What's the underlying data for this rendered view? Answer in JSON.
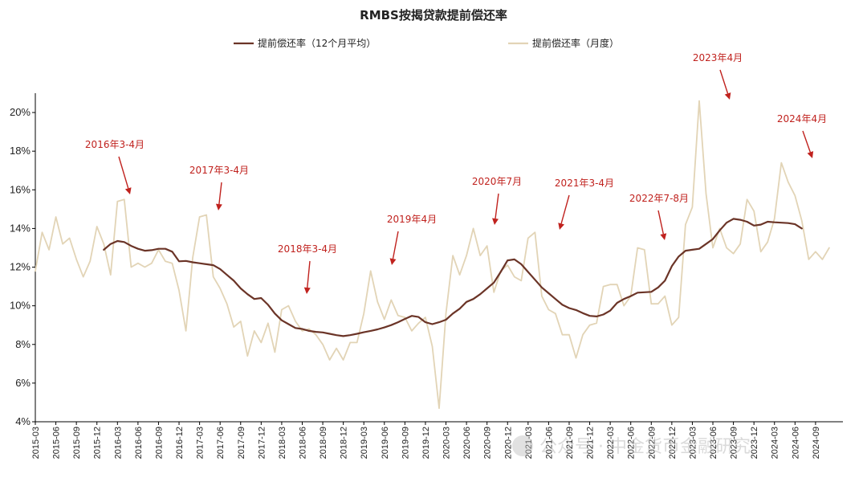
{
  "colors": {
    "avg_line": "#6b3427",
    "monthly_line": "#e2d4b6",
    "annotation": "#c0221e",
    "axis": "#000000"
  },
  "watermark": "公众号 · 中金货币金融研究",
  "chart_data": {
    "type": "line",
    "title": "RMBS按揭贷款提前偿还率",
    "xlabel": "",
    "ylabel": "",
    "ylim": [
      0.04,
      0.21
    ],
    "yticks": [
      "4%",
      "6%",
      "8%",
      "10%",
      "12%",
      "14%",
      "16%",
      "18%",
      "20%"
    ],
    "legend_position": "top-center",
    "grid": false,
    "x_tick_labels": [
      "2015-03",
      "2015-06",
      "2015-09",
      "2015-12",
      "2016-03",
      "2016-06",
      "2016-09",
      "2016-12",
      "2017-03",
      "2017-06",
      "2017-09",
      "2017-12",
      "2018-03",
      "2018-06",
      "2018-09",
      "2018-12",
      "2019-03",
      "2019-06",
      "2019-09",
      "2019-12",
      "2020-03",
      "2020-06",
      "2020-09",
      "2020-12",
      "2021-03",
      "2021-06",
      "2021-09",
      "2021-12",
      "2022-03",
      "2022-06",
      "2022-09",
      "2022-12",
      "2023-03",
      "2023-06",
      "2023-09",
      "2023-12",
      "2024-03",
      "2024-06",
      "2024-09"
    ],
    "series": [
      {
        "name": "提前偿还率（12个月平均）",
        "start": "2016-01",
        "values": [
          0.129,
          0.132,
          0.1335,
          0.133,
          0.131,
          0.1295,
          0.1285,
          0.1288,
          0.1295,
          0.1295,
          0.128,
          0.123,
          0.1232,
          0.1225,
          0.122,
          0.1215,
          0.121,
          0.119,
          0.116,
          0.113,
          0.109,
          0.106,
          0.1035,
          0.104,
          0.1005,
          0.096,
          0.0925,
          0.0905,
          0.0885,
          0.088,
          0.087,
          0.0865,
          0.0862,
          0.0855,
          0.0848,
          0.0843,
          0.0848,
          0.0855,
          0.0863,
          0.087,
          0.0878,
          0.0888,
          0.09,
          0.0915,
          0.0932,
          0.0948,
          0.0942,
          0.0915,
          0.0905,
          0.0915,
          0.0928,
          0.096,
          0.0985,
          0.102,
          0.1035,
          0.106,
          0.109,
          0.112,
          0.1175,
          0.1235,
          0.124,
          0.1215,
          0.1175,
          0.1135,
          0.1095,
          0.1065,
          0.1035,
          0.1005,
          0.0988,
          0.0978,
          0.0962,
          0.0948,
          0.0945,
          0.0955,
          0.0975,
          0.1015,
          0.1035,
          0.105,
          0.1068,
          0.107,
          0.1072,
          0.1095,
          0.113,
          0.1205,
          0.1255,
          0.1285,
          0.129,
          0.1295,
          0.132,
          0.1345,
          0.139,
          0.143,
          0.145,
          0.1445,
          0.1435,
          0.1415,
          0.142,
          0.1435,
          0.1432,
          0.143,
          0.1428,
          0.1422,
          0.14
        ]
      },
      {
        "name": "提前偿还率（月度）",
        "start": "2015-03",
        "values": [
          0.118,
          0.138,
          0.129,
          0.146,
          0.132,
          0.135,
          0.124,
          0.115,
          0.123,
          0.141,
          0.132,
          0.116,
          0.154,
          0.155,
          0.12,
          0.122,
          0.12,
          0.122,
          0.129,
          0.123,
          0.122,
          0.108,
          0.087,
          0.125,
          0.146,
          0.147,
          0.115,
          0.109,
          0.101,
          0.089,
          0.092,
          0.074,
          0.087,
          0.081,
          0.091,
          0.076,
          0.098,
          0.1,
          0.092,
          0.087,
          0.088,
          0.085,
          0.08,
          0.072,
          0.078,
          0.072,
          0.081,
          0.081,
          0.096,
          0.118,
          0.102,
          0.093,
          0.103,
          0.095,
          0.094,
          0.087,
          0.091,
          0.094,
          0.079,
          0.047,
          0.096,
          0.126,
          0.116,
          0.126,
          0.14,
          0.126,
          0.131,
          0.107,
          0.118,
          0.121,
          0.115,
          0.113,
          0.135,
          0.138,
          0.105,
          0.098,
          0.096,
          0.085,
          0.085,
          0.073,
          0.085,
          0.09,
          0.091,
          0.11,
          0.111,
          0.111,
          0.1,
          0.105,
          0.13,
          0.129,
          0.101,
          0.101,
          0.105,
          0.09,
          0.094,
          0.142,
          0.151,
          0.206,
          0.158,
          0.13,
          0.14,
          0.13,
          0.127,
          0.132,
          0.155,
          0.149,
          0.128,
          0.133,
          0.145,
          0.174,
          0.164,
          0.157,
          0.144,
          0.124,
          0.128,
          0.124,
          0.13
        ]
      }
    ],
    "annotations": [
      {
        "label": "2016年3-4月",
        "date": "2016-04"
      },
      {
        "label": "2017年3-4月",
        "date": "2017-04"
      },
      {
        "label": "2018年3-4月",
        "date": "2018-04"
      },
      {
        "label": "2019年4月",
        "date": "2019-04"
      },
      {
        "label": "2020年7月",
        "date": "2020-07"
      },
      {
        "label": "2021年3-4月",
        "date": "2021-04"
      },
      {
        "label": "2022年7-8月",
        "date": "2022-08"
      },
      {
        "label": "2023年4月",
        "date": "2023-04"
      },
      {
        "label": "2024年4月",
        "date": "2024-04"
      }
    ]
  }
}
